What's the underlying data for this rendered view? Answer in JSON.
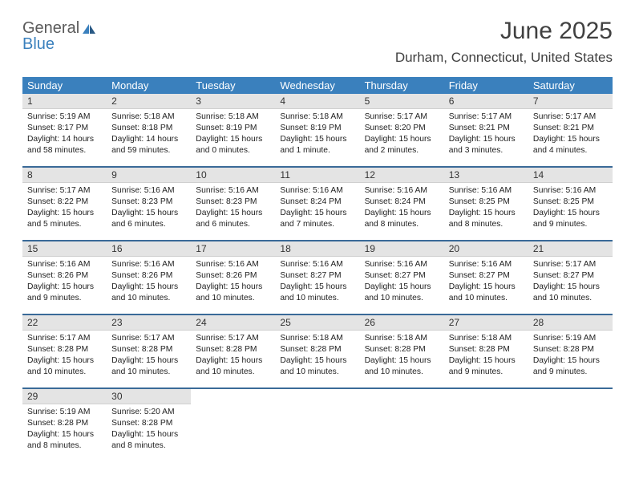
{
  "logo": {
    "word1": "General",
    "word2": "Blue"
  },
  "title": "June 2025",
  "location": "Durham, Connecticut, United States",
  "header_bg": "#3a80bd",
  "header_text_color": "#ffffff",
  "daynum_bg": "#e4e4e4",
  "row_border": "#3a6a98",
  "days_of_week": [
    "Sunday",
    "Monday",
    "Tuesday",
    "Wednesday",
    "Thursday",
    "Friday",
    "Saturday"
  ],
  "weeks": [
    [
      {
        "n": "1",
        "sr": "5:19 AM",
        "ss": "8:17 PM",
        "dl": "14 hours and 58 minutes."
      },
      {
        "n": "2",
        "sr": "5:18 AM",
        "ss": "8:18 PM",
        "dl": "14 hours and 59 minutes."
      },
      {
        "n": "3",
        "sr": "5:18 AM",
        "ss": "8:19 PM",
        "dl": "15 hours and 0 minutes."
      },
      {
        "n": "4",
        "sr": "5:18 AM",
        "ss": "8:19 PM",
        "dl": "15 hours and 1 minute."
      },
      {
        "n": "5",
        "sr": "5:17 AM",
        "ss": "8:20 PM",
        "dl": "15 hours and 2 minutes."
      },
      {
        "n": "6",
        "sr": "5:17 AM",
        "ss": "8:21 PM",
        "dl": "15 hours and 3 minutes."
      },
      {
        "n": "7",
        "sr": "5:17 AM",
        "ss": "8:21 PM",
        "dl": "15 hours and 4 minutes."
      }
    ],
    [
      {
        "n": "8",
        "sr": "5:17 AM",
        "ss": "8:22 PM",
        "dl": "15 hours and 5 minutes."
      },
      {
        "n": "9",
        "sr": "5:16 AM",
        "ss": "8:23 PM",
        "dl": "15 hours and 6 minutes."
      },
      {
        "n": "10",
        "sr": "5:16 AM",
        "ss": "8:23 PM",
        "dl": "15 hours and 6 minutes."
      },
      {
        "n": "11",
        "sr": "5:16 AM",
        "ss": "8:24 PM",
        "dl": "15 hours and 7 minutes."
      },
      {
        "n": "12",
        "sr": "5:16 AM",
        "ss": "8:24 PM",
        "dl": "15 hours and 8 minutes."
      },
      {
        "n": "13",
        "sr": "5:16 AM",
        "ss": "8:25 PM",
        "dl": "15 hours and 8 minutes."
      },
      {
        "n": "14",
        "sr": "5:16 AM",
        "ss": "8:25 PM",
        "dl": "15 hours and 9 minutes."
      }
    ],
    [
      {
        "n": "15",
        "sr": "5:16 AM",
        "ss": "8:26 PM",
        "dl": "15 hours and 9 minutes."
      },
      {
        "n": "16",
        "sr": "5:16 AM",
        "ss": "8:26 PM",
        "dl": "15 hours and 10 minutes."
      },
      {
        "n": "17",
        "sr": "5:16 AM",
        "ss": "8:26 PM",
        "dl": "15 hours and 10 minutes."
      },
      {
        "n": "18",
        "sr": "5:16 AM",
        "ss": "8:27 PM",
        "dl": "15 hours and 10 minutes."
      },
      {
        "n": "19",
        "sr": "5:16 AM",
        "ss": "8:27 PM",
        "dl": "15 hours and 10 minutes."
      },
      {
        "n": "20",
        "sr": "5:16 AM",
        "ss": "8:27 PM",
        "dl": "15 hours and 10 minutes."
      },
      {
        "n": "21",
        "sr": "5:17 AM",
        "ss": "8:27 PM",
        "dl": "15 hours and 10 minutes."
      }
    ],
    [
      {
        "n": "22",
        "sr": "5:17 AM",
        "ss": "8:28 PM",
        "dl": "15 hours and 10 minutes."
      },
      {
        "n": "23",
        "sr": "5:17 AM",
        "ss": "8:28 PM",
        "dl": "15 hours and 10 minutes."
      },
      {
        "n": "24",
        "sr": "5:17 AM",
        "ss": "8:28 PM",
        "dl": "15 hours and 10 minutes."
      },
      {
        "n": "25",
        "sr": "5:18 AM",
        "ss": "8:28 PM",
        "dl": "15 hours and 10 minutes."
      },
      {
        "n": "26",
        "sr": "5:18 AM",
        "ss": "8:28 PM",
        "dl": "15 hours and 10 minutes."
      },
      {
        "n": "27",
        "sr": "5:18 AM",
        "ss": "8:28 PM",
        "dl": "15 hours and 9 minutes."
      },
      {
        "n": "28",
        "sr": "5:19 AM",
        "ss": "8:28 PM",
        "dl": "15 hours and 9 minutes."
      }
    ],
    [
      {
        "n": "29",
        "sr": "5:19 AM",
        "ss": "8:28 PM",
        "dl": "15 hours and 8 minutes."
      },
      {
        "n": "30",
        "sr": "5:20 AM",
        "ss": "8:28 PM",
        "dl": "15 hours and 8 minutes."
      },
      null,
      null,
      null,
      null,
      null
    ]
  ],
  "labels": {
    "sunrise": "Sunrise:",
    "sunset": "Sunset:",
    "daylight": "Daylight:"
  }
}
